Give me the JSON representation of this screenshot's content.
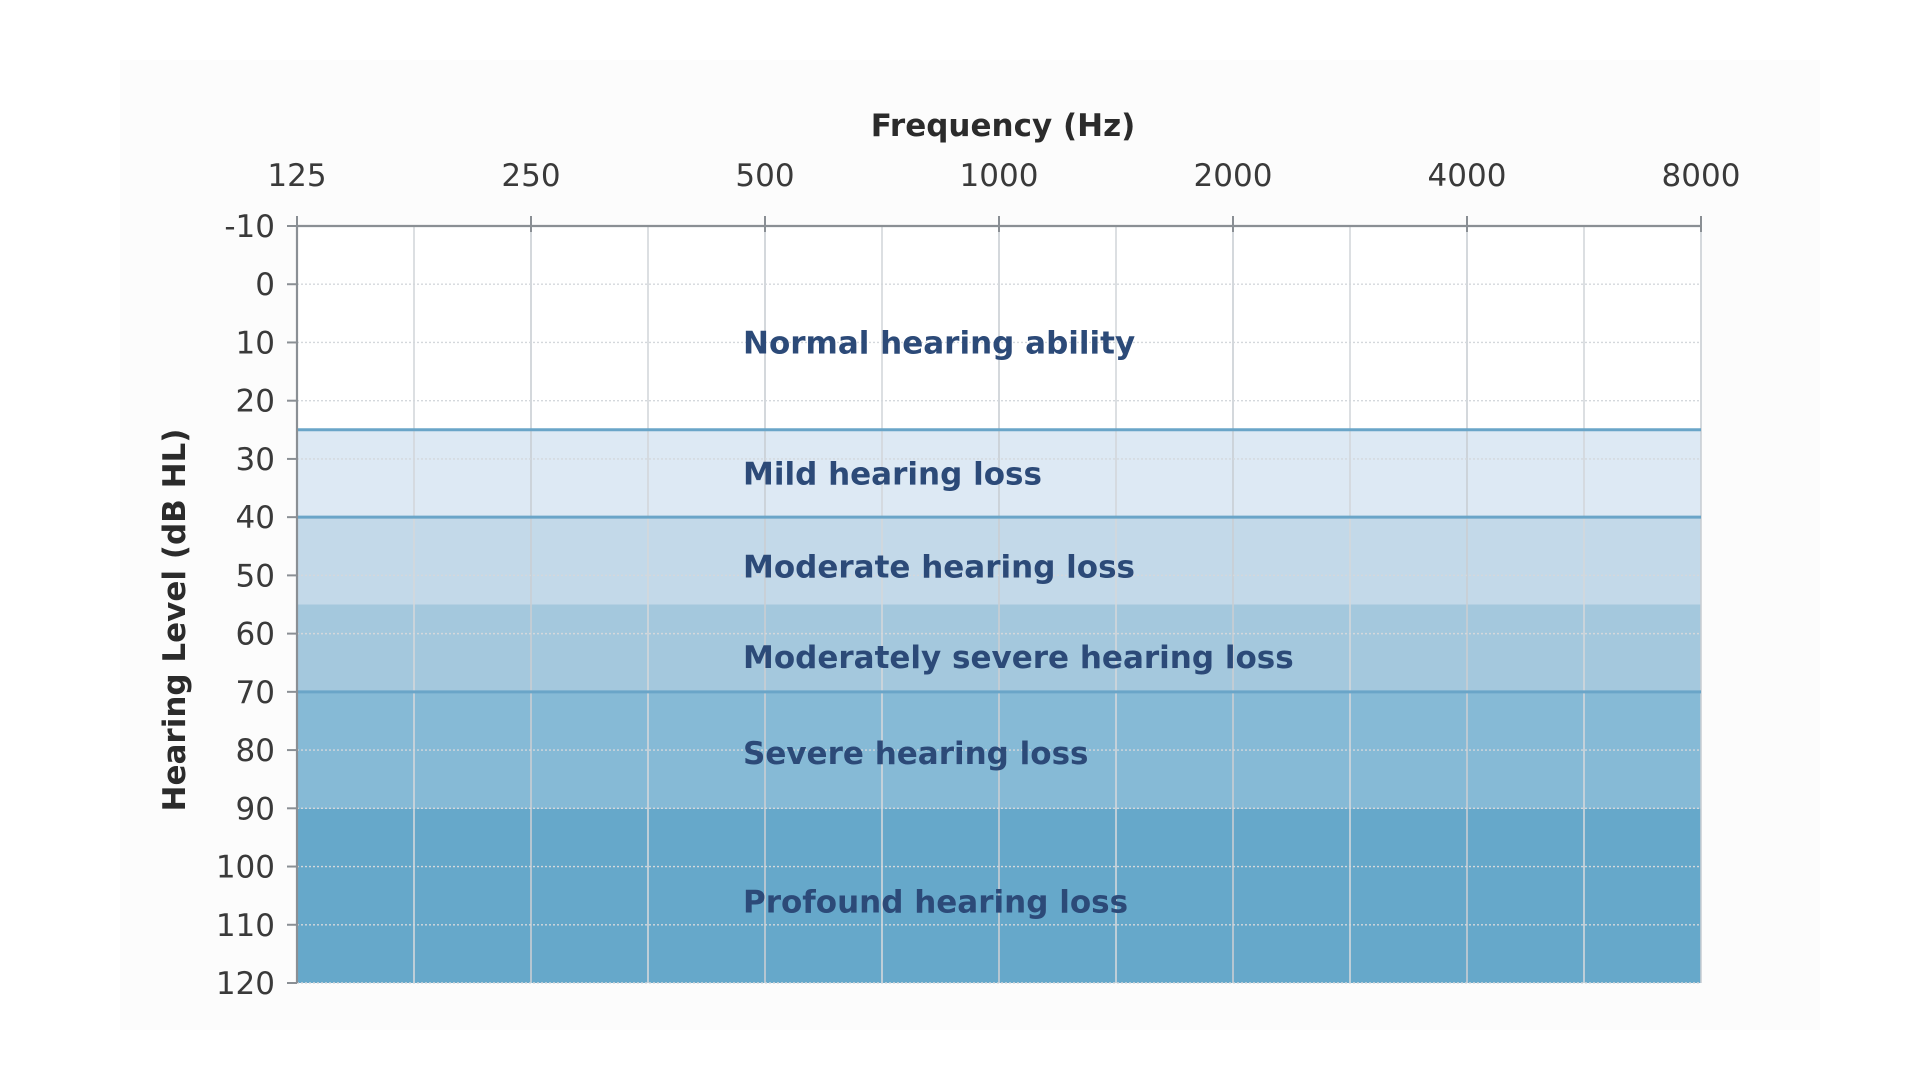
{
  "chart_data": {
    "type": "heatmap",
    "title": "",
    "xlabel": "Frequency (Hz)",
    "ylabel": "Hearing Level (dB HL)",
    "x_scale": "log2",
    "x_ticks": [
      125,
      250,
      500,
      1000,
      2000,
      4000,
      8000
    ],
    "x_tick_labels": [
      "125",
      "250",
      "500",
      "1000",
      "2000",
      "4000",
      "8000"
    ],
    "xlim": [
      125,
      8000
    ],
    "y_ticks": [
      -10,
      0,
      10,
      20,
      30,
      40,
      50,
      60,
      70,
      80,
      90,
      100,
      110,
      120
    ],
    "y_tick_labels": [
      "-10",
      "0",
      "10",
      "20",
      "30",
      "40",
      "50",
      "60",
      "70",
      "80",
      "90",
      "100",
      "110",
      "120"
    ],
    "ylim": [
      -10,
      120
    ],
    "y_inverted": true,
    "bands": [
      {
        "label": "Normal hearing ability",
        "from": -10,
        "to": 25,
        "color": "#ffffff",
        "label_db": 10
      },
      {
        "label": "Mild hearing loss",
        "from": 25,
        "to": 40,
        "color": "#dde9f4",
        "label_db": 32.5
      },
      {
        "label": "Moderate hearing loss",
        "from": 40,
        "to": 55,
        "color": "#c3d9e9",
        "label_db": 48.5
      },
      {
        "label": "Moderately severe hearing loss",
        "from": 55,
        "to": 70,
        "color": "#a4c8dd",
        "label_db": 64
      },
      {
        "label": "Severe hearing loss",
        "from": 70,
        "to": 90,
        "color": "#86bad6",
        "label_db": 80.5
      },
      {
        "label": "Profound hearing loss",
        "from": 90,
        "to": 120,
        "color": "#66a8ca",
        "label_db": 106
      }
    ],
    "boundary_lines": [
      25,
      40,
      70
    ],
    "boundary_color": "#6aa5c8",
    "label_x_hz": 500,
    "grid": true
  }
}
